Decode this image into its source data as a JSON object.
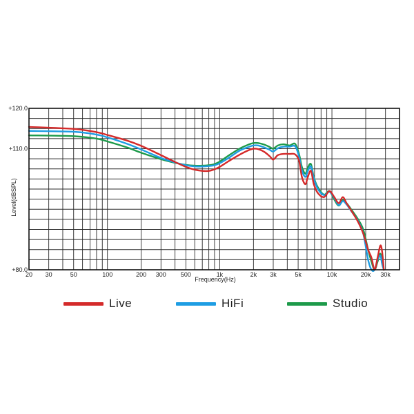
{
  "chart_data": {
    "type": "line",
    "title": "",
    "xlabel": "Frequency(Hz)",
    "ylabel": "Level(dBSPL)",
    "x_scale": "log",
    "xlim": [
      20,
      40000
    ],
    "ylim": [
      80,
      120
    ],
    "grid": true,
    "x_tick_values": [
      20,
      30,
      50,
      100,
      200,
      300,
      500,
      1000,
      2000,
      3000,
      5000,
      10000,
      20000,
      30000
    ],
    "x_tick_labels": [
      "20",
      "30",
      "50",
      "100",
      "200",
      "300",
      "500",
      "1k",
      "2k",
      "3k",
      "5k",
      "10k",
      "20k",
      "30k"
    ],
    "y_tick_values": [
      120,
      110,
      80
    ],
    "y_tick_labels": [
      "+120.0",
      "+110.0",
      "+80.0"
    ],
    "legend_position": "bottom",
    "series": [
      {
        "name": "Live",
        "color": "#d42a2a",
        "x": [
          20,
          50,
          80,
          100,
          150,
          200,
          300,
          400,
          500,
          600,
          700,
          800,
          900,
          1000,
          1200,
          1500,
          1800,
          2000,
          2200,
          2500,
          2800,
          3000,
          3300,
          3700,
          4200,
          4700,
          5100,
          5400,
          5800,
          6100,
          6500,
          6900,
          7500,
          8500,
          9500,
          10500,
          11500,
          12500,
          13500,
          15000,
          17000,
          19000,
          21000,
          22500,
          24000,
          25500,
          27000,
          28000,
          29000
        ],
        "y": [
          115.4,
          114.9,
          114.1,
          113.4,
          112.0,
          110.7,
          108.4,
          106.7,
          105.5,
          104.8,
          104.5,
          104.5,
          104.9,
          105.5,
          106.9,
          108.5,
          109.6,
          110.0,
          109.9,
          109.2,
          108.1,
          107.3,
          108.4,
          108.7,
          108.7,
          108.6,
          107.0,
          103.0,
          101.2,
          103.0,
          104.5,
          101.2,
          99.0,
          98.0,
          99.5,
          98.0,
          96.5,
          98.0,
          96.5,
          94.5,
          92.0,
          89.0,
          85.0,
          83.0,
          80.0,
          83.0,
          86.0,
          84.5,
          80.0
        ]
      },
      {
        "name": "HiFi",
        "color": "#1e9de3",
        "x": [
          20,
          50,
          80,
          100,
          150,
          200,
          300,
          400,
          500,
          600,
          700,
          800,
          900,
          1000,
          1200,
          1500,
          1800,
          2000,
          2200,
          2500,
          2800,
          3000,
          3300,
          3700,
          4200,
          4700,
          5100,
          5400,
          5800,
          6100,
          6500,
          6900,
          7500,
          8500,
          9500,
          10500,
          11500,
          12500,
          13500,
          15000,
          17000,
          19000,
          21000,
          22500,
          24000,
          25500,
          27000,
          28000,
          29000
        ],
        "y": [
          114.4,
          114.2,
          113.5,
          112.8,
          111.2,
          109.8,
          107.7,
          106.6,
          105.9,
          105.6,
          105.6,
          105.7,
          105.9,
          106.4,
          107.7,
          109.5,
          110.4,
          110.8,
          110.8,
          110.3,
          109.7,
          109.3,
          110.1,
          110.5,
          110.5,
          110.6,
          108.0,
          104.6,
          103.0,
          104.5,
          105.6,
          102.6,
          100.0,
          98.5,
          99.3,
          97.8,
          96.0,
          97.0,
          96.2,
          94.4,
          92.2,
          89.0,
          82.5,
          80.0,
          80.0,
          82.5,
          83.5,
          81.5,
          80.0
        ]
      },
      {
        "name": "Studio",
        "color": "#1d9a4a",
        "x": [
          20,
          50,
          80,
          100,
          150,
          200,
          300,
          400,
          500,
          600,
          700,
          800,
          900,
          1000,
          1200,
          1500,
          1800,
          2000,
          2200,
          2500,
          2800,
          3000,
          3300,
          3700,
          4200,
          4700,
          5100,
          5400,
          5800,
          6100,
          6500,
          6900,
          7500,
          8500,
          9500,
          10500,
          11500,
          12500,
          13500,
          15000,
          17000,
          19000,
          21000,
          22500,
          24000,
          25500,
          27000,
          28000,
          29000
        ],
        "y": [
          113.3,
          113.1,
          112.5,
          111.8,
          110.3,
          109.0,
          107.4,
          106.5,
          106.0,
          105.8,
          105.8,
          105.9,
          106.2,
          106.8,
          108.3,
          110.0,
          111.0,
          111.4,
          111.4,
          111.0,
          110.4,
          110.0,
          110.8,
          111.1,
          110.8,
          111.2,
          108.6,
          105.5,
          103.8,
          105.3,
          106.2,
          102.9,
          100.4,
          98.6,
          99.5,
          97.4,
          95.9,
          97.3,
          96.5,
          94.8,
          92.6,
          90.0,
          85.0,
          82.0,
          80.0,
          82.0,
          84.0,
          81.5,
          80.0
        ]
      }
    ]
  }
}
